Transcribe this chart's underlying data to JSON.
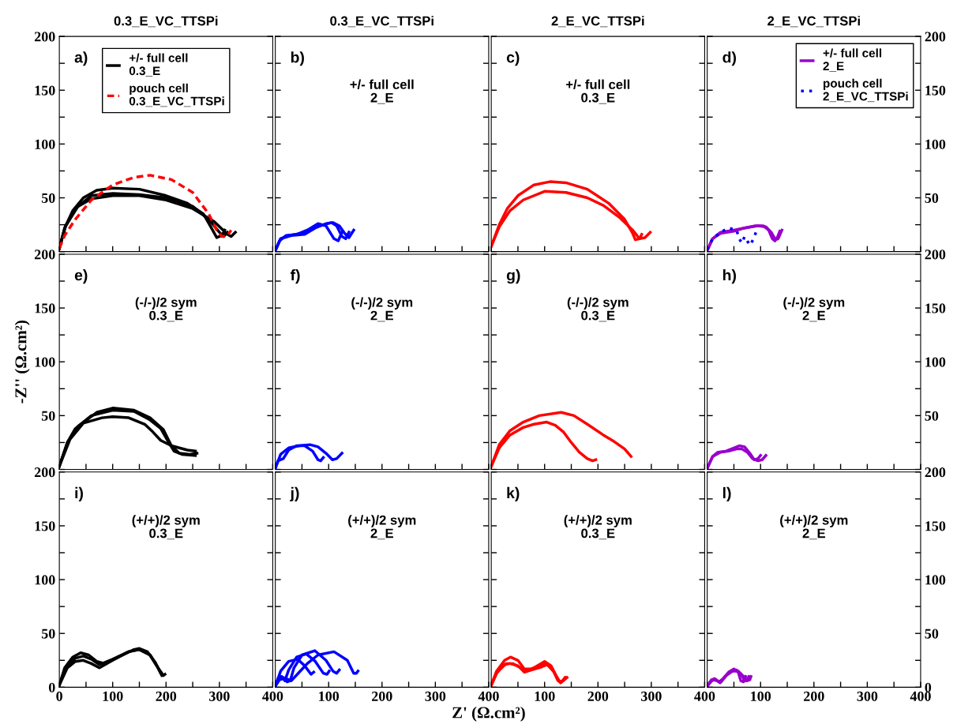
{
  "chart_data": [
    {
      "type": "line",
      "title": "0.3_E_VC_TTSPi",
      "annotations": [
        "a)"
      ],
      "legend": "top",
      "tick_labels": "y",
      "xlim": [
        0,
        400
      ],
      "ylim": [
        0,
        200
      ],
      "xticks": [
        0,
        {
          "value": 50,
          "label": null
        },
        100,
        {
          "value": 150,
          "label": null
        },
        200,
        {
          "value": 250,
          "label": null
        },
        300,
        {
          "value": 350,
          "label": null
        },
        400
      ],
      "yticks": [
        {
          "value": 0,
          "label": null
        },
        {
          "value": 25,
          "label": null
        },
        50,
        {
          "value": 75,
          "label": null
        },
        100,
        {
          "value": 125,
          "label": null
        },
        150,
        {
          "value": 175,
          "label": null
        },
        200
      ],
      "series": [
        {
          "name": "+/- full cell\n0.3_E",
          "color": "#000000",
          "line_style": "solid",
          "x": [
            0,
            10,
            25,
            45,
            70,
            100,
            150,
            200,
            240,
            270,
            285,
            295,
            305,
            310
          ],
          "values": [
            3,
            22,
            38,
            50,
            57,
            59,
            58,
            52,
            45,
            35,
            22,
            13,
            15,
            20
          ]
        },
        {
          "color": "#000000",
          "line_style": "solid",
          "x": [
            0,
            10,
            30,
            60,
            100,
            150,
            200,
            250,
            280,
            300,
            308,
            315
          ],
          "values": [
            3,
            22,
            40,
            52,
            54,
            53,
            50,
            42,
            30,
            18,
            14,
            18
          ]
        },
        {
          "color": "#000000",
          "line_style": "solid",
          "x": [
            0,
            12,
            35,
            60,
            100,
            150,
            200,
            250,
            290,
            315,
            322,
            330
          ],
          "values": [
            3,
            24,
            42,
            49,
            52,
            52,
            48,
            40,
            28,
            16,
            14,
            18
          ]
        },
        {
          "name": "pouch cell\n0.3_E_VC_TTSPi",
          "color": "#ff0000",
          "line_style": "dashed",
          "x": [
            0,
            10,
            30,
            60,
            100,
            140,
            170,
            210,
            250,
            280,
            295,
            305,
            315,
            322
          ],
          "values": [
            3,
            15,
            30,
            48,
            62,
            69,
            71,
            67,
            55,
            35,
            20,
            14,
            15,
            20
          ]
        }
      ]
    },
    {
      "type": "line",
      "title": "0.3_E_VC_TTSPi",
      "annotations": [
        "b)",
        "+/- full cell\n2_E"
      ],
      "tick_labels": false,
      "xlim": [
        0,
        400
      ],
      "ylim": [
        0,
        200
      ],
      "xticks": [
        0,
        {
          "value": 50,
          "label": null
        },
        100,
        {
          "value": 150,
          "label": null
        },
        200,
        {
          "value": 250,
          "label": null
        },
        300,
        {
          "value": 350,
          "label": null
        },
        400
      ],
      "yticks": [
        {
          "value": 0,
          "label": null
        },
        {
          "value": 25,
          "label": null
        },
        50,
        {
          "value": 75,
          "label": null
        },
        100,
        {
          "value": 125,
          "label": null
        },
        150,
        {
          "value": 175,
          "label": null
        },
        200
      ],
      "series": [
        {
          "color": "#0000ff",
          "line_style": "solid",
          "x": [
            0,
            8,
            20,
            40,
            60,
            80,
            95,
            110,
            118,
            125
          ],
          "values": [
            1,
            10,
            15,
            16,
            20,
            26,
            24,
            12,
            10,
            18
          ]
        },
        {
          "color": "#0000ff",
          "line_style": "solid",
          "x": [
            0,
            10,
            25,
            50,
            70,
            90,
            105,
            115,
            125,
            132,
            138
          ],
          "values": [
            1,
            12,
            15,
            17,
            22,
            25,
            27,
            24,
            14,
            12,
            18
          ]
        },
        {
          "color": "#0000ff",
          "line_style": "solid",
          "x": [
            0,
            10,
            30,
            55,
            75,
            95,
            108,
            120,
            130,
            138,
            147
          ],
          "values": [
            1,
            12,
            15,
            16,
            22,
            26,
            27,
            24,
            17,
            13,
            20
          ]
        }
      ]
    },
    {
      "type": "line",
      "title": "2_E_VC_TTSPi",
      "annotations": [
        "c)",
        "+/- full cell\n0.3_E"
      ],
      "tick_labels": false,
      "xlim": [
        0,
        400
      ],
      "ylim": [
        0,
        200
      ],
      "xticks": [
        0,
        {
          "value": 50,
          "label": null
        },
        100,
        {
          "value": 150,
          "label": null
        },
        200,
        {
          "value": 250,
          "label": null
        },
        300,
        {
          "value": 350,
          "label": null
        },
        400
      ],
      "yticks": [
        {
          "value": 0,
          "label": null
        },
        {
          "value": 25,
          "label": null
        },
        50,
        {
          "value": 75,
          "label": null
        },
        100,
        {
          "value": 125,
          "label": null
        },
        150,
        {
          "value": 175,
          "label": null
        },
        200
      ],
      "series": [
        {
          "color": "#ff0000",
          "line_style": "solid",
          "x": [
            0,
            15,
            30,
            50,
            80,
            110,
            140,
            180,
            220,
            250,
            265,
            270,
            278,
            282
          ],
          "values": [
            5,
            25,
            40,
            52,
            62,
            65,
            64,
            58,
            45,
            30,
            17,
            11,
            12,
            16
          ]
        },
        {
          "color": "#ff0000",
          "line_style": "solid",
          "x": [
            0,
            15,
            35,
            60,
            100,
            140,
            180,
            210,
            240,
            265,
            278,
            288,
            298
          ],
          "values": [
            5,
            23,
            38,
            48,
            56,
            55,
            50,
            43,
            32,
            20,
            12,
            13,
            18
          ]
        }
      ]
    },
    {
      "type": "line",
      "title": "2_E_VC_TTSPi",
      "annotations": [
        "d)"
      ],
      "legend": "top right",
      "tick_labels": "y",
      "xlim": [
        0,
        400
      ],
      "ylim": [
        0,
        200
      ],
      "xticks": [
        0,
        {
          "value": 50,
          "label": null
        },
        100,
        {
          "value": 150,
          "label": null
        },
        200,
        {
          "value": 250,
          "label": null
        },
        300,
        {
          "value": 350,
          "label": null
        },
        400
      ],
      "yticks": [
        {
          "value": 0,
          "label": null
        },
        {
          "value": 25,
          "label": null
        },
        50,
        {
          "value": 75,
          "label": null
        },
        100,
        {
          "value": 125,
          "label": null
        },
        150,
        {
          "value": 175,
          "label": null
        },
        200
      ],
      "series": [
        {
          "name": "+/- full cell\n2_E",
          "color": "#9900cc",
          "line_style": "solid",
          "x": [
            0,
            10,
            25,
            50,
            70,
            90,
            105,
            115,
            122,
            127,
            132,
            136
          ],
          "values": [
            1,
            12,
            18,
            20,
            22,
            24,
            24,
            20,
            12,
            10,
            14,
            19
          ]
        },
        {
          "color": "#9900cc",
          "line_style": "solid",
          "x": [
            0,
            10,
            25,
            50,
            70,
            95,
            110,
            120,
            128,
            133,
            140
          ],
          "values": [
            1,
            12,
            17,
            19,
            22,
            24,
            23,
            18,
            11,
            12,
            20
          ]
        },
        {
          "name": "pouch cell\n2_E_VC_TTSPi",
          "color": "#0000ff",
          "line_style": "dotted",
          "x": [
            0,
            10,
            25,
            40,
            55,
            60,
            65,
            70,
            75,
            80,
            87,
            92
          ],
          "values": [
            2,
            12,
            18,
            22,
            20,
            12,
            8,
            14,
            10,
            6,
            12,
            19
          ]
        }
      ]
    },
    {
      "type": "line",
      "annotations": [
        "e)",
        "(-/-)/2 sym\n0.3_E"
      ],
      "ylabel": "-Z'' (Ω.cm²)",
      "tick_labels": "y",
      "xlim": [
        0,
        400
      ],
      "ylim": [
        0,
        200
      ],
      "xticks": [
        0,
        {
          "value": 50,
          "label": null
        },
        100,
        {
          "value": 150,
          "label": null
        },
        200,
        {
          "value": 250,
          "label": null
        },
        300,
        {
          "value": 350,
          "label": null
        },
        400
      ],
      "yticks": [
        {
          "value": 0,
          "label": null
        },
        {
          "value": 25,
          "label": null
        },
        50,
        {
          "value": 75,
          "label": null
        },
        100,
        {
          "value": 125,
          "label": null
        },
        150,
        {
          "value": 175,
          "label": null
        },
        200
      ],
      "series": [
        {
          "color": "#000000",
          "line_style": "solid",
          "x": [
            0,
            15,
            30,
            60,
            100,
            140,
            170,
            190,
            205,
            215,
            230,
            255
          ],
          "values": [
            3,
            25,
            38,
            50,
            55,
            54,
            46,
            38,
            25,
            17,
            14,
            13
          ]
        },
        {
          "color": "#000000",
          "line_style": "solid",
          "x": [
            0,
            15,
            35,
            70,
            100,
            140,
            170,
            195,
            210,
            225,
            245,
            258
          ],
          "values": [
            3,
            25,
            40,
            53,
            57,
            55,
            48,
            37,
            22,
            15,
            14,
            15
          ]
        },
        {
          "color": "#000000",
          "line_style": "solid",
          "x": [
            0,
            20,
            45,
            80,
            100,
            130,
            160,
            175,
            190,
            210,
            240,
            255
          ],
          "values": [
            3,
            28,
            43,
            48,
            49,
            48,
            42,
            35,
            27,
            22,
            18,
            17
          ]
        }
      ]
    },
    {
      "type": "line",
      "annotations": [
        "f)",
        "(-/-)/2 sym\n2_E"
      ],
      "tick_labels": false,
      "xlim": [
        0,
        400
      ],
      "ylim": [
        0,
        200
      ],
      "xticks": [
        0,
        {
          "value": 50,
          "label": null
        },
        100,
        {
          "value": 150,
          "label": null
        },
        200,
        {
          "value": 250,
          "label": null
        },
        300,
        {
          "value": 350,
          "label": null
        },
        400
      ],
      "yticks": [
        {
          "value": 0,
          "label": null
        },
        {
          "value": 25,
          "label": null
        },
        50,
        {
          "value": 75,
          "label": null
        },
        100,
        {
          "value": 125,
          "label": null
        },
        150,
        {
          "value": 175,
          "label": null
        },
        200
      ],
      "series": [
        {
          "color": "#0000ff",
          "line_style": "solid",
          "x": [
            0,
            5,
            15,
            25,
            40,
            55,
            70,
            80,
            85,
            90
          ],
          "values": [
            1,
            8,
            10,
            18,
            22,
            22,
            17,
            9,
            8,
            11
          ]
        },
        {
          "color": "#0000ff",
          "line_style": "solid",
          "x": [
            0,
            10,
            25,
            45,
            65,
            80,
            95,
            107,
            115,
            125
          ],
          "values": [
            1,
            14,
            20,
            22,
            23,
            21,
            15,
            9,
            10,
            15
          ]
        }
      ]
    },
    {
      "type": "line",
      "annotations": [
        "g)",
        "(-/-)/2 sym\n0.3_E"
      ],
      "tick_labels": false,
      "xlim": [
        0,
        400
      ],
      "ylim": [
        0,
        200
      ],
      "xticks": [
        0,
        {
          "value": 50,
          "label": null
        },
        100,
        {
          "value": 150,
          "label": null
        },
        200,
        {
          "value": 250,
          "label": null
        },
        300,
        {
          "value": 350,
          "label": null
        },
        400
      ],
      "yticks": [
        {
          "value": 0,
          "label": null
        },
        {
          "value": 25,
          "label": null
        },
        50,
        {
          "value": 75,
          "label": null
        },
        100,
        {
          "value": 125,
          "label": null
        },
        150,
        {
          "value": 175,
          "label": null
        },
        200
      ],
      "series": [
        {
          "color": "#ff0000",
          "line_style": "solid",
          "x": [
            0,
            15,
            35,
            60,
            80,
            104,
            120,
            135,
            150,
            165,
            180,
            190,
            196
          ],
          "values": [
            3,
            20,
            32,
            39,
            42,
            44,
            41,
            35,
            25,
            16,
            10,
            8,
            9
          ]
        },
        {
          "color": "#ff0000",
          "line_style": "solid",
          "x": [
            0,
            15,
            35,
            60,
            90,
            131,
            155,
            180,
            210,
            230,
            250,
            262
          ],
          "values": [
            3,
            23,
            36,
            44,
            50,
            53,
            50,
            42,
            32,
            26,
            19,
            12
          ]
        }
      ]
    },
    {
      "type": "line",
      "annotations": [
        "h)",
        "(-/-)/2 sym\n2_E"
      ],
      "tick_labels": "y",
      "xlim": [
        0,
        400
      ],
      "ylim": [
        0,
        200
      ],
      "xticks": [
        0,
        {
          "value": 50,
          "label": null
        },
        100,
        {
          "value": 150,
          "label": null
        },
        200,
        {
          "value": 250,
          "label": null
        },
        300,
        {
          "value": 350,
          "label": null
        },
        400
      ],
      "yticks": [
        {
          "value": 0,
          "label": null
        },
        {
          "value": 25,
          "label": null
        },
        50,
        {
          "value": 75,
          "label": null
        },
        100,
        {
          "value": 125,
          "label": null
        },
        150,
        {
          "value": 175,
          "label": null
        },
        200
      ],
      "series": [
        {
          "color": "#9900cc",
          "line_style": "solid",
          "x": [
            0,
            10,
            20,
            35,
            50,
            60,
            70,
            80,
            88,
            95,
            100
          ],
          "values": [
            1,
            12,
            16,
            17,
            20,
            22,
            21,
            15,
            9,
            10,
            13
          ]
        },
        {
          "color": "#9900cc",
          "line_style": "solid",
          "x": [
            0,
            10,
            25,
            40,
            55,
            65,
            75,
            85,
            95,
            103,
            110
          ],
          "values": [
            1,
            12,
            16,
            17,
            19,
            19,
            16,
            10,
            8,
            9,
            13
          ]
        }
      ]
    },
    {
      "type": "line",
      "annotations": [
        "i)",
        "(+/+)/2 sym\n0.3_E"
      ],
      "xlim": [
        0,
        400
      ],
      "ylim": [
        0,
        200
      ],
      "xticks": [
        0,
        {
          "value": 50,
          "label": null
        },
        100,
        {
          "value": 150,
          "label": null
        },
        200,
        {
          "value": 250,
          "label": null
        },
        300,
        {
          "value": 350,
          "label": null
        },
        400
      ],
      "yticks": [
        0,
        {
          "value": 25,
          "label": null
        },
        50,
        {
          "value": 75,
          "label": null
        },
        100,
        {
          "value": 125,
          "label": null
        },
        150,
        {
          "value": 175,
          "label": null
        },
        200
      ],
      "series": [
        {
          "color": "#000000",
          "line_style": "solid",
          "x": [
            0,
            10,
            25,
            40,
            55,
            70,
            85,
            110,
            140,
            150,
            165,
            180,
            190,
            195,
            198
          ],
          "values": [
            2,
            18,
            28,
            32,
            30,
            24,
            22,
            28,
            35,
            36,
            33,
            23,
            13,
            11,
            12
          ]
        },
        {
          "color": "#000000",
          "line_style": "solid",
          "x": [
            0,
            12,
            30,
            45,
            60,
            75,
            100,
            130,
            150,
            170,
            185,
            192
          ],
          "values": [
            2,
            18,
            27,
            29,
            26,
            21,
            26,
            33,
            35,
            30,
            18,
            11
          ]
        },
        {
          "color": "#000000",
          "line_style": "solid",
          "x": [
            0,
            15,
            30,
            45,
            60,
            75,
            100,
            130,
            150,
            170,
            185,
            195
          ],
          "values": [
            2,
            18,
            24,
            25,
            22,
            18,
            25,
            33,
            35,
            30,
            18,
            11
          ]
        }
      ]
    },
    {
      "type": "line",
      "annotations": [
        "j)",
        "(+/+)/2 sym\n2_E"
      ],
      "xlabel": "Z' (Ω.cm²)",
      "tick_labels": "x",
      "xlim": [
        0,
        400
      ],
      "ylim": [
        0,
        200
      ],
      "xticks": [
        {
          "value": 0,
          "label": null
        },
        {
          "value": 50,
          "label": null
        },
        100,
        {
          "value": 150,
          "label": null
        },
        200,
        {
          "value": 250,
          "label": null
        },
        300,
        {
          "value": 350,
          "label": null
        },
        400
      ],
      "yticks": [
        0,
        25,
        50,
        75,
        100,
        125,
        150,
        175,
        200
      ],
      "series": [
        {
          "color": "#0000ff",
          "line_style": "solid",
          "x": [
            0,
            10,
            25,
            42,
            55,
            67,
            72
          ],
          "values": [
            1,
            15,
            24,
            26,
            20,
            12,
            14
          ]
        },
        {
          "color": "#0000ff",
          "line_style": "solid",
          "x": [
            0,
            5,
            12,
            18,
            25,
            40,
            58,
            75,
            90,
            97,
            101
          ],
          "values": [
            1,
            8,
            10,
            6,
            16,
            28,
            31,
            24,
            13,
            12,
            15
          ]
        },
        {
          "color": "#0000ff",
          "line_style": "solid",
          "x": [
            0,
            8,
            15,
            22,
            28,
            35,
            50,
            74,
            95,
            108,
            115,
            120
          ],
          "values": [
            1,
            7,
            8,
            5,
            6,
            18,
            30,
            34,
            25,
            15,
            13,
            16
          ]
        },
        {
          "color": "#0000ff",
          "line_style": "solid",
          "x": [
            0,
            10,
            20,
            30,
            45,
            60,
            80,
            110,
            135,
            147,
            152,
            155
          ],
          "values": [
            1,
            10,
            8,
            6,
            14,
            22,
            30,
            33,
            25,
            13,
            13,
            15
          ]
        }
      ]
    },
    {
      "type": "line",
      "annotations": [
        "k)",
        "(+/+)/2 sym\n0.3_E"
      ],
      "tick_labels": "x",
      "xlim": [
        0,
        400
      ],
      "ylim": [
        0,
        200
      ],
      "xticks": [
        {
          "value": 0,
          "label": null
        },
        {
          "value": 50,
          "label": null
        },
        100,
        {
          "value": 150,
          "label": null
        },
        200,
        {
          "value": 250,
          "label": null
        },
        300,
        {
          "value": 350,
          "label": null
        },
        400
      ],
      "yticks": [
        0,
        25,
        50,
        75,
        100,
        125,
        150,
        175,
        200
      ],
      "series": [
        {
          "color": "#ff0000",
          "line_style": "solid",
          "x": [
            0,
            10,
            25,
            36,
            50,
            62,
            75,
            90,
            103,
            115,
            125,
            132,
            138
          ],
          "values": [
            2,
            15,
            25,
            28,
            25,
            17,
            17,
            20,
            22,
            17,
            6,
            5,
            9
          ]
        },
        {
          "color": "#ff0000",
          "line_style": "solid",
          "x": [
            0,
            10,
            25,
            35,
            50,
            62,
            75,
            95,
            105,
            118,
            128,
            135,
            142
          ],
          "values": [
            2,
            13,
            21,
            22,
            20,
            14,
            16,
            19,
            21,
            14,
            5,
            6,
            9
          ]
        },
        {
          "color": "#ff0000",
          "line_style": "solid",
          "x": [
            0,
            12,
            28,
            40,
            55,
            65,
            80,
            100,
            112,
            122,
            130,
            136,
            140
          ],
          "values": [
            2,
            15,
            22,
            22,
            18,
            15,
            18,
            24,
            20,
            10,
            4,
            7,
            9
          ]
        }
      ]
    },
    {
      "type": "line",
      "annotations": [
        "l)",
        "(+/+)/2 sym\n2_E"
      ],
      "xlim": [
        0,
        400
      ],
      "ylim": [
        0,
        200
      ],
      "xticks": [
        {
          "value": 0,
          "label": null
        },
        {
          "value": 50,
          "label": null
        },
        100,
        {
          "value": 150,
          "label": null
        },
        200,
        {
          "value": 250,
          "label": null
        },
        300,
        {
          "value": 350,
          "label": null
        },
        400
      ],
      "yticks": [
        0,
        {
          "value": 25,
          "label": null
        },
        50,
        {
          "value": 75,
          "label": null
        },
        100,
        {
          "value": 125,
          "label": null
        },
        150,
        {
          "value": 175,
          "label": null
        },
        200
      ],
      "series": [
        {
          "color": "#9900cc",
          "line_style": "solid",
          "x": [
            0,
            8,
            14,
            22,
            30,
            40,
            50,
            58,
            63,
            68,
            72
          ],
          "values": [
            1,
            7,
            8,
            5,
            8,
            14,
            17,
            14,
            6,
            5,
            10
          ]
        },
        {
          "color": "#9900cc",
          "line_style": "solid",
          "x": [
            0,
            8,
            16,
            24,
            33,
            45,
            55,
            64,
            70,
            74,
            78
          ],
          "values": [
            1,
            6,
            7,
            4,
            10,
            15,
            16,
            12,
            6,
            6,
            10
          ]
        },
        {
          "color": "#9900cc",
          "line_style": "solid",
          "x": [
            0,
            10,
            18,
            26,
            36,
            48,
            58,
            68,
            75,
            80,
            82
          ],
          "values": [
            1,
            7,
            6,
            5,
            11,
            15,
            15,
            10,
            6,
            7,
            10
          ]
        }
      ]
    }
  ]
}
